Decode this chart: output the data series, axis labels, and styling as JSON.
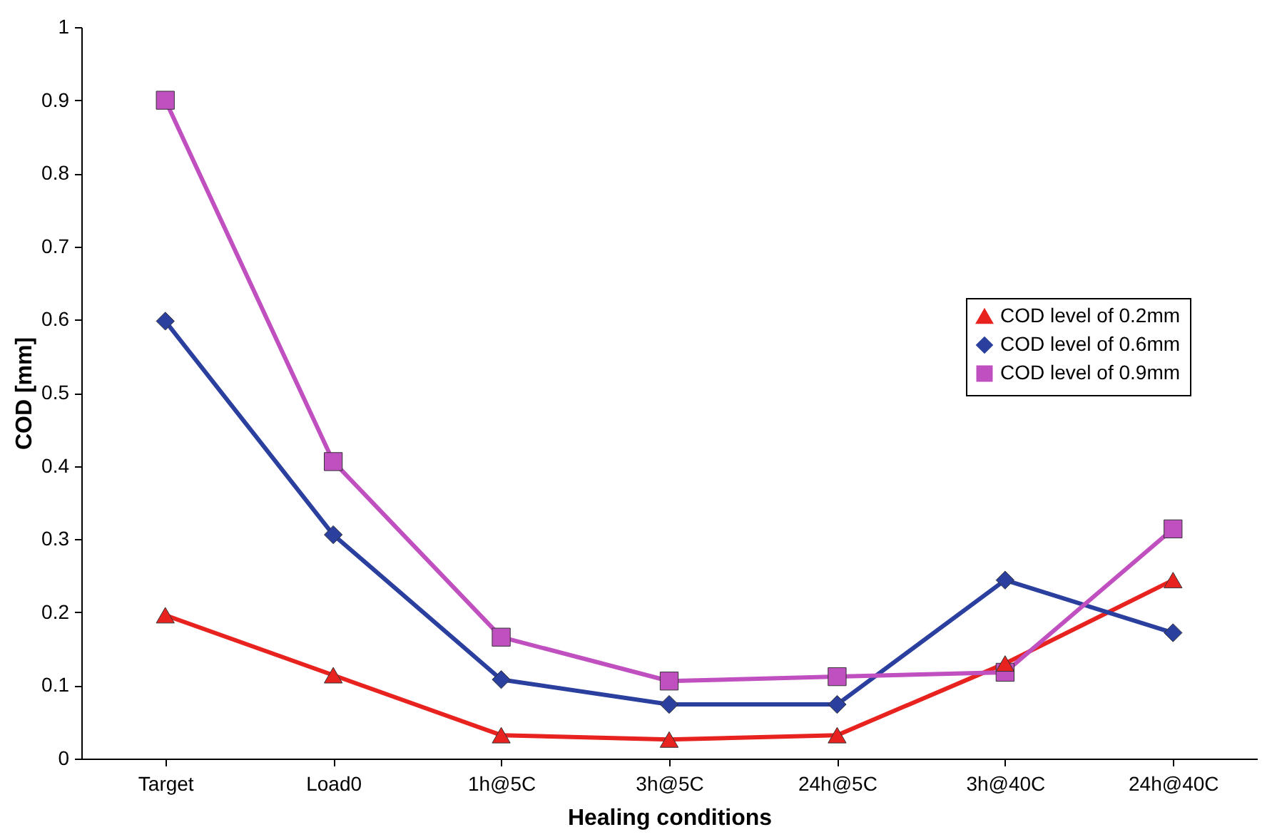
{
  "chart_data": {
    "type": "line",
    "xlabel": "Healing conditions",
    "ylabel": "COD [mm]",
    "categories": [
      "Target",
      "Load0",
      "1h@5C",
      "3h@5C",
      "24h@5C",
      "3h@40C",
      "24h@40C"
    ],
    "series": [
      {
        "name": "COD level of 0.2mm",
        "color": "#e8231f",
        "marker": "triangle",
        "values": [
          0.196,
          0.114,
          0.032,
          0.026,
          0.032,
          0.13,
          0.244
        ]
      },
      {
        "name": "COD level of 0.6mm",
        "color": "#2a3f9e",
        "marker": "diamond",
        "values": [
          0.598,
          0.306,
          0.108,
          0.074,
          0.074,
          0.244,
          0.172
        ]
      },
      {
        "name": "COD level of 0.9mm",
        "color": "#c050c0",
        "marker": "square",
        "values": [
          0.9,
          0.406,
          0.166,
          0.106,
          0.112,
          0.118,
          0.314
        ]
      }
    ],
    "ylim": [
      0,
      1
    ],
    "yticks": [
      0,
      0.1,
      0.2,
      0.3,
      0.4,
      0.5,
      0.6,
      0.7,
      0.8,
      0.9,
      1
    ],
    "grid": false,
    "legend": "right",
    "line_style": "solid"
  }
}
